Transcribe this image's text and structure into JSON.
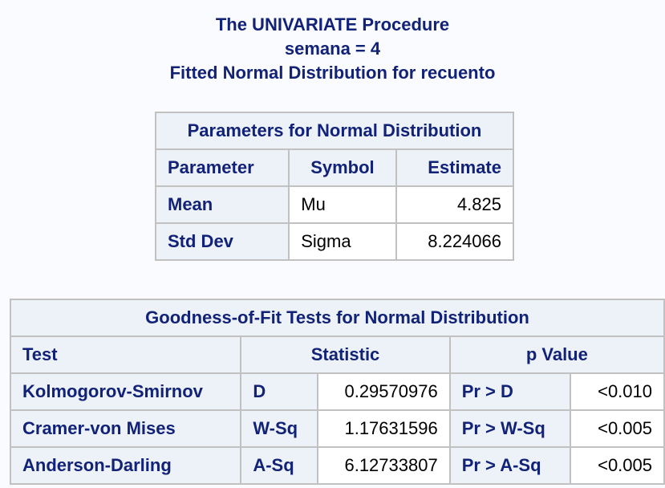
{
  "titles": {
    "line1": "The UNIVARIATE Procedure",
    "line2": "semana = 4",
    "line3": "Fitted Normal Distribution for recuento"
  },
  "params_table": {
    "caption": "Parameters for Normal Distribution",
    "headers": [
      "Parameter",
      "Symbol",
      "Estimate"
    ],
    "rows": [
      {
        "parameter": "Mean",
        "symbol": "Mu",
        "estimate": "4.825"
      },
      {
        "parameter": "Std Dev",
        "symbol": "Sigma",
        "estimate": "8.224066"
      }
    ]
  },
  "gof_table": {
    "caption": "Goodness-of-Fit Tests for Normal Distribution",
    "headers": [
      "Test",
      "Statistic",
      "p Value"
    ],
    "rows": [
      {
        "test": "Kolmogorov-Smirnov",
        "stat_name": "D",
        "stat_value": "0.29570976",
        "p_label": "Pr > D",
        "p_value": "<0.010"
      },
      {
        "test": "Cramer-von Mises",
        "stat_name": "W-Sq",
        "stat_value": "1.17631596",
        "p_label": "Pr > W-Sq",
        "p_value": "<0.005"
      },
      {
        "test": "Anderson-Darling",
        "stat_name": "A-Sq",
        "stat_value": "6.12733807",
        "p_label": "Pr > A-Sq",
        "p_value": "<0.005"
      }
    ]
  }
}
